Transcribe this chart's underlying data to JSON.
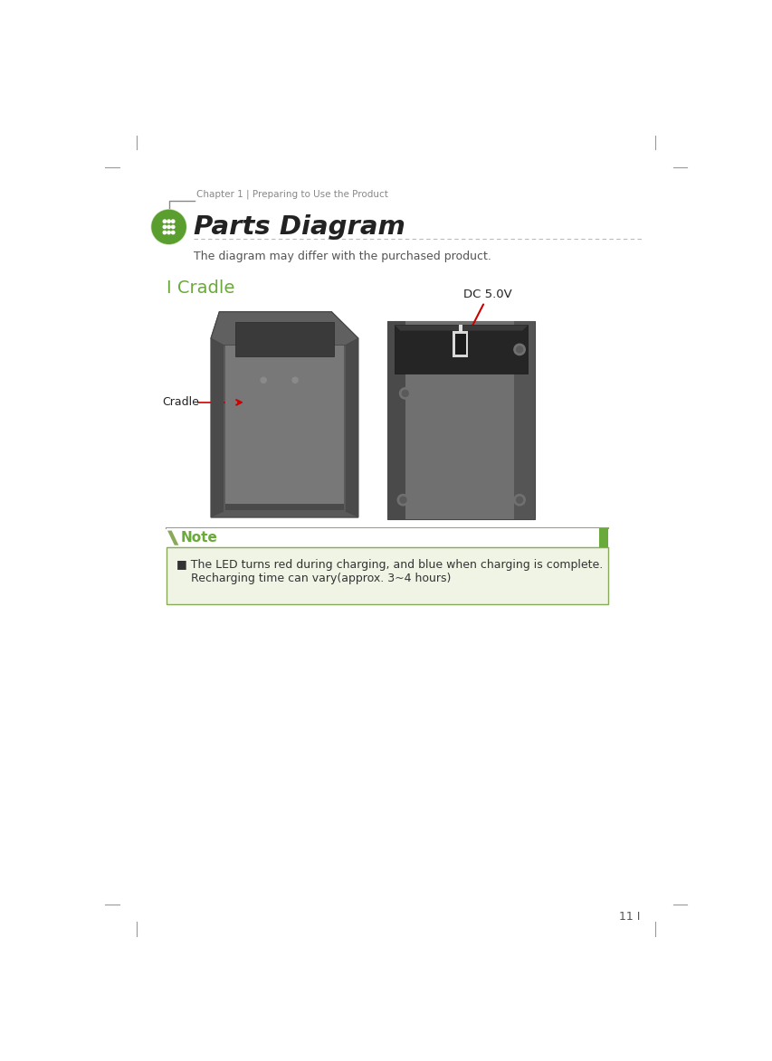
{
  "page_bg": "#ffffff",
  "chapter_text": "Chapter 1 | Preparing to Use the Product",
  "title_text": "Parts Diagram",
  "subtitle_text": "The diagram may differ with the purchased product.",
  "section_title": "I Cradle",
  "section_color": "#6aaa3a",
  "cradle_label": "Cradle",
  "dc_label": "DC 5.0V",
  "note_title": "Note",
  "note_line1": "■ The LED turns red during charging, and blue when charging is complete.",
  "note_line2": "    Recharging time can vary(approx. 3~4 hours)",
  "note_bg": "#eff4e5",
  "note_border": "#8aaa5a",
  "page_number": "11 I",
  "arrow_color": "#cc0000",
  "green_icon_color": "#5a9e2f",
  "dashed_line_color": "#aaaaaa",
  "tick_color": "#999999"
}
